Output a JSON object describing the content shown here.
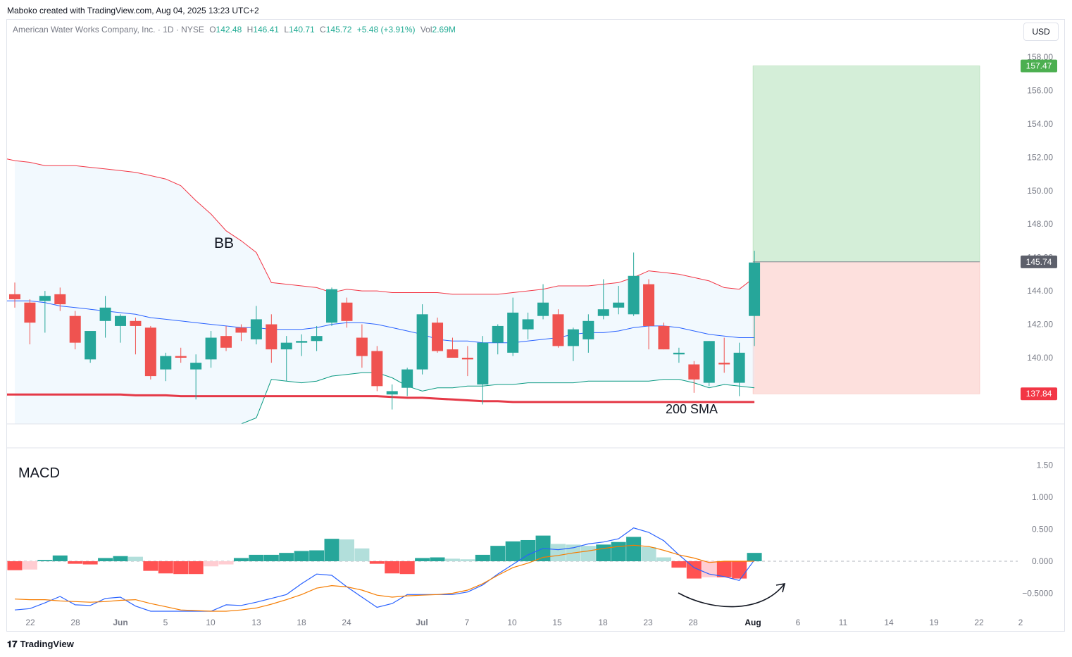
{
  "header": {
    "caption": "Maboko created with TradingView.com, Aug 04, 2025 13:23 UTC+2"
  },
  "legend": {
    "symbol": "American Water Works Company, Inc. · 1D · NYSE",
    "open_label": "O",
    "open": "142.48",
    "high_label": "H",
    "high": "146.41",
    "low_label": "L",
    "low": "140.71",
    "close_label": "C",
    "close": "145.72",
    "change": "+5.48 (+3.91%)",
    "vol_label": "Vol",
    "vol": "2.69M"
  },
  "currency_button": "USD",
  "footer": {
    "brand": "TradingView"
  },
  "annotations": {
    "bb": "BB",
    "sma": "200 SMA",
    "macd": "MACD"
  },
  "colors": {
    "up": "#26a69a",
    "down": "#ef5350",
    "bb_upper": "#f23645",
    "bb_basis": "#2962ff",
    "bb_lower": "#089981",
    "sma": "#e53947",
    "macd_line": "#2962ff",
    "signal_line": "#f57c00",
    "target_zone": "#d4eed8",
    "stop_zone": "#fde0dd",
    "target_tag": "#4caf50",
    "stop_tag": "#f23645",
    "current_tag": "#5d606b"
  },
  "chart_data": [
    {
      "type": "candlestick",
      "title": "",
      "y_axis": {
        "ticks": [
          "158.00",
          "156.00",
          "154.00",
          "152.00",
          "150.00",
          "148.00",
          "146.00",
          "144.00",
          "142.00",
          "140.00"
        ],
        "range": [
          135.25,
          159.0
        ]
      },
      "x_axis": {
        "ticks": [
          "22",
          "28",
          "Jun",
          "5",
          "10",
          "13",
          "18",
          "24",
          "Jul",
          "7",
          "10",
          "15",
          "18",
          "23",
          "28",
          "Aug",
          "6",
          "11",
          "14",
          "19",
          "22",
          "2"
        ]
      },
      "price_tags": {
        "target": "157.47",
        "current": "145.74",
        "stop": "137.84"
      },
      "position": {
        "entry": 145.74,
        "target": 157.47,
        "stop": 137.84
      },
      "candles": [
        {
          "o": 143.8,
          "h": 144.5,
          "l": 143.0,
          "c": 143.5
        },
        {
          "o": 143.3,
          "h": 143.5,
          "l": 140.8,
          "c": 142.1
        },
        {
          "o": 143.4,
          "h": 144.0,
          "l": 141.5,
          "c": 143.7
        },
        {
          "o": 143.8,
          "h": 144.2,
          "l": 142.8,
          "c": 143.2
        },
        {
          "o": 142.5,
          "h": 142.8,
          "l": 140.5,
          "c": 140.9
        },
        {
          "o": 139.9,
          "h": 141.5,
          "l": 139.7,
          "c": 141.6
        },
        {
          "o": 142.2,
          "h": 143.7,
          "l": 141.2,
          "c": 143.0
        },
        {
          "o": 141.9,
          "h": 142.6,
          "l": 140.9,
          "c": 142.5
        },
        {
          "o": 142.2,
          "h": 142.4,
          "l": 140.2,
          "c": 141.9
        },
        {
          "o": 141.8,
          "h": 141.9,
          "l": 138.7,
          "c": 138.9
        },
        {
          "o": 139.3,
          "h": 140.3,
          "l": 138.6,
          "c": 140.1
        },
        {
          "o": 140.1,
          "h": 140.6,
          "l": 139.7,
          "c": 140.0
        },
        {
          "o": 139.3,
          "h": 140.2,
          "l": 137.5,
          "c": 139.7
        },
        {
          "o": 139.9,
          "h": 141.6,
          "l": 139.4,
          "c": 141.2
        },
        {
          "o": 141.3,
          "h": 141.9,
          "l": 140.4,
          "c": 140.6
        },
        {
          "o": 141.8,
          "h": 142.0,
          "l": 141.0,
          "c": 141.5
        },
        {
          "o": 141.1,
          "h": 143.1,
          "l": 140.8,
          "c": 142.3
        },
        {
          "o": 142.0,
          "h": 142.6,
          "l": 139.7,
          "c": 140.5
        },
        {
          "o": 140.5,
          "h": 141.3,
          "l": 138.6,
          "c": 140.9
        },
        {
          "o": 140.9,
          "h": 141.4,
          "l": 140.1,
          "c": 141.0
        },
        {
          "o": 141.0,
          "h": 141.9,
          "l": 140.4,
          "c": 141.3
        },
        {
          "o": 142.1,
          "h": 144.2,
          "l": 141.9,
          "c": 144.1
        },
        {
          "o": 143.3,
          "h": 143.6,
          "l": 141.8,
          "c": 142.2
        },
        {
          "o": 141.2,
          "h": 142.0,
          "l": 139.4,
          "c": 140.1
        },
        {
          "o": 140.4,
          "h": 140.7,
          "l": 138.0,
          "c": 138.3
        },
        {
          "o": 137.8,
          "h": 138.4,
          "l": 136.9,
          "c": 138.0
        },
        {
          "o": 138.2,
          "h": 139.4,
          "l": 137.7,
          "c": 139.3
        },
        {
          "o": 139.3,
          "h": 143.2,
          "l": 139.0,
          "c": 142.6
        },
        {
          "o": 142.1,
          "h": 142.4,
          "l": 140.3,
          "c": 140.4
        },
        {
          "o": 140.5,
          "h": 141.2,
          "l": 140.0,
          "c": 140.0
        },
        {
          "o": 140.0,
          "h": 140.7,
          "l": 138.9,
          "c": 139.9
        },
        {
          "o": 138.4,
          "h": 141.3,
          "l": 137.2,
          "c": 140.9
        },
        {
          "o": 140.9,
          "h": 142.0,
          "l": 140.2,
          "c": 141.9
        },
        {
          "o": 140.3,
          "h": 143.6,
          "l": 140.1,
          "c": 142.7
        },
        {
          "o": 141.7,
          "h": 142.7,
          "l": 141.1,
          "c": 142.3
        },
        {
          "o": 142.5,
          "h": 144.4,
          "l": 142.3,
          "c": 143.3
        },
        {
          "o": 142.6,
          "h": 142.9,
          "l": 140.6,
          "c": 140.7
        },
        {
          "o": 140.7,
          "h": 141.8,
          "l": 139.8,
          "c": 141.7
        },
        {
          "o": 141.1,
          "h": 142.6,
          "l": 140.3,
          "c": 142.2
        },
        {
          "o": 142.5,
          "h": 144.7,
          "l": 142.3,
          "c": 142.9
        },
        {
          "o": 143.0,
          "h": 144.3,
          "l": 142.6,
          "c": 143.3
        },
        {
          "o": 142.6,
          "h": 146.3,
          "l": 142.5,
          "c": 144.9
        },
        {
          "o": 144.4,
          "h": 144.7,
          "l": 140.5,
          "c": 141.9
        },
        {
          "o": 141.9,
          "h": 142.1,
          "l": 140.5,
          "c": 140.5
        },
        {
          "o": 140.2,
          "h": 140.6,
          "l": 139.7,
          "c": 140.3
        },
        {
          "o": 139.6,
          "h": 139.8,
          "l": 137.9,
          "c": 138.7
        },
        {
          "o": 138.5,
          "h": 141.0,
          "l": 138.3,
          "c": 141.0
        },
        {
          "o": 139.7,
          "h": 141.2,
          "l": 139.1,
          "c": 139.6
        },
        {
          "o": 138.5,
          "h": 140.9,
          "l": 137.7,
          "c": 140.3
        },
        {
          "o": 142.5,
          "h": 146.4,
          "l": 140.7,
          "c": 145.7
        }
      ],
      "bb_upper": [
        151.8,
        151.7,
        151.5,
        151.5,
        151.5,
        151.4,
        151.3,
        151.2,
        151.1,
        150.9,
        150.7,
        150.3,
        149.4,
        148.6,
        147.6,
        147.0,
        146.3,
        144.5,
        144.4,
        144.3,
        144.2,
        143.9,
        144.1,
        144.0,
        144.0,
        143.9,
        143.9,
        143.9,
        143.9,
        143.8,
        143.8,
        143.8,
        143.8,
        143.9,
        144.0,
        144.1,
        144.3,
        144.3,
        144.3,
        144.4,
        144.5,
        144.8,
        145.2,
        145.1,
        145.0,
        144.8,
        144.6,
        144.2,
        144.1,
        144.8
      ],
      "bb_basis": [
        143.4,
        143.4,
        143.3,
        143.1,
        143.0,
        142.9,
        142.8,
        142.7,
        142.6,
        142.4,
        142.3,
        142.2,
        142.1,
        142.0,
        141.9,
        141.8,
        141.8,
        141.7,
        141.7,
        141.7,
        141.8,
        142.0,
        142.1,
        142.1,
        142.0,
        141.8,
        141.6,
        141.4,
        141.1,
        141.0,
        141.0,
        140.9,
        140.9,
        140.9,
        141.0,
        141.1,
        141.2,
        141.4,
        141.5,
        141.5,
        141.6,
        141.8,
        141.9,
        141.9,
        141.8,
        141.6,
        141.4,
        141.3,
        141.2,
        141.2
      ],
      "bb_lower": [
        null,
        null,
        null,
        null,
        null,
        null,
        null,
        null,
        null,
        null,
        null,
        null,
        null,
        135.3,
        135.3,
        135.3,
        136.4,
        138.7,
        138.6,
        138.5,
        138.6,
        138.9,
        139.0,
        139.1,
        139.1,
        138.8,
        138.3,
        138.0,
        138.2,
        138.2,
        138.3,
        138.3,
        138.4,
        138.4,
        138.5,
        138.5,
        138.5,
        138.5,
        138.6,
        138.6,
        138.6,
        138.6,
        138.6,
        138.7,
        138.7,
        138.5,
        138.2,
        138.4,
        138.3,
        138.2
      ],
      "sma200": [
        137.8,
        137.8,
        137.8,
        137.8,
        137.8,
        137.8,
        137.8,
        137.8,
        137.75,
        137.75,
        137.75,
        137.7,
        137.7,
        137.7,
        137.7,
        137.7,
        137.7,
        137.7,
        137.7,
        137.7,
        137.7,
        137.7,
        137.7,
        137.7,
        137.7,
        137.65,
        137.6,
        137.6,
        137.55,
        137.5,
        137.45,
        137.4,
        137.4,
        137.35,
        137.35,
        137.35,
        137.35,
        137.35,
        137.35,
        137.35,
        137.35,
        137.35,
        137.35,
        137.35,
        137.35,
        137.35,
        137.35,
        137.35,
        137.35,
        137.35
      ]
    },
    {
      "type": "bar",
      "title": "",
      "y_axis": {
        "ticks": [
          "1.50",
          "1.000",
          "0.500",
          "0.000",
          "−0.5000"
        ],
        "range": [
          -0.8,
          1.5
        ]
      },
      "histogram": [
        -0.14,
        -0.13,
        0.02,
        0.09,
        -0.04,
        -0.05,
        0.05,
        0.08,
        0.07,
        -0.15,
        -0.19,
        -0.2,
        -0.2,
        -0.08,
        -0.05,
        0.05,
        0.1,
        0.1,
        0.13,
        0.16,
        0.17,
        0.35,
        0.34,
        0.2,
        -0.04,
        -0.19,
        -0.2,
        0.05,
        0.06,
        0.04,
        0.03,
        0.1,
        0.24,
        0.31,
        0.33,
        0.4,
        0.27,
        0.26,
        0.24,
        0.26,
        0.3,
        0.38,
        0.22,
        0.06,
        -0.1,
        -0.27,
        -0.25,
        -0.25,
        -0.27,
        0.13
      ],
      "macd": [
        -0.76,
        -0.74,
        -0.65,
        -0.55,
        -0.68,
        -0.69,
        -0.58,
        -0.56,
        -0.7,
        -0.94,
        -1.02,
        -1.0,
        -0.9,
        -0.86,
        -0.68,
        -0.69,
        -0.64,
        -0.58,
        -0.52,
        -0.35,
        -0.2,
        -0.22,
        -0.4,
        -0.56,
        -0.72,
        -0.66,
        -0.52,
        -0.52,
        -0.52,
        -0.52,
        -0.48,
        -0.37,
        -0.2,
        -0.05,
        0.1,
        0.2,
        0.18,
        0.21,
        0.27,
        0.3,
        0.35,
        0.52,
        0.45,
        0.32,
        0.1,
        -0.1,
        -0.2,
        -0.24,
        -0.3,
        0.02
      ],
      "signal": [
        -0.59,
        -0.6,
        -0.6,
        -0.62,
        -0.63,
        -0.64,
        -0.63,
        -0.61,
        -0.6,
        -0.66,
        -0.71,
        -0.76,
        -0.77,
        -0.8,
        -0.78,
        -0.76,
        -0.73,
        -0.67,
        -0.6,
        -0.52,
        -0.42,
        -0.38,
        -0.4,
        -0.45,
        -0.53,
        -0.56,
        -0.54,
        -0.53,
        -0.52,
        -0.5,
        -0.45,
        -0.35,
        -0.22,
        -0.1,
        -0.03,
        0.06,
        0.09,
        0.13,
        0.16,
        0.2,
        0.23,
        0.25,
        0.23,
        0.17,
        0.1,
        0.05,
        -0.02,
        0.0,
        0.0,
        0.0
      ]
    }
  ]
}
